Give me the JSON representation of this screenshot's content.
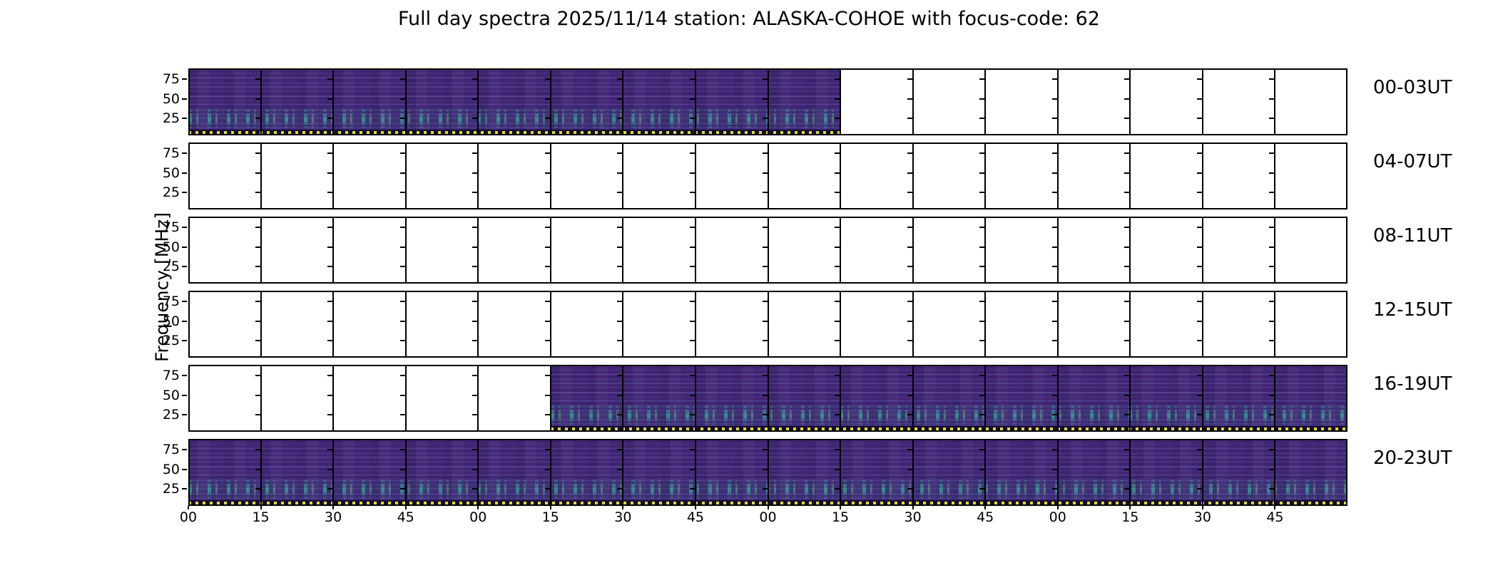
{
  "title": "Full day spectra 2025/11/14 station: ALASKA-COHOE with focus-code: 62",
  "y_axis": {
    "label": "Frequency [MHz]",
    "ticks": [
      "75",
      "50",
      "25"
    ]
  },
  "x_axis": {
    "tick_labels": [
      "00",
      "15",
      "30",
      "45",
      "00",
      "15",
      "30",
      "45",
      "00",
      "15",
      "30",
      "45",
      "00",
      "15",
      "30",
      "45"
    ],
    "tick_unit": "minutes",
    "segments_per_row": 16,
    "segment_duration_min": 15
  },
  "rows": [
    {
      "label": "00-03UT",
      "time_span": "00:00-04:00 UT",
      "filled_from_segment": 0,
      "filled_to_segment": 9,
      "data_coverage": "00:00-02:15"
    },
    {
      "label": "04-07UT",
      "time_span": "04:00-08:00 UT",
      "filled_from_segment": 0,
      "filled_to_segment": 0,
      "data_coverage": "none"
    },
    {
      "label": "08-11UT",
      "time_span": "08:00-12:00 UT",
      "filled_from_segment": 0,
      "filled_to_segment": 0,
      "data_coverage": "none"
    },
    {
      "label": "12-15UT",
      "time_span": "12:00-16:00 UT",
      "filled_from_segment": 0,
      "filled_to_segment": 0,
      "data_coverage": "none"
    },
    {
      "label": "16-19UT",
      "time_span": "16:00-20:00 UT",
      "filled_from_segment": 5,
      "filled_to_segment": 16,
      "data_coverage": "17:15-20:00"
    },
    {
      "label": "20-23UT",
      "time_span": "20:00-24:00 UT",
      "filled_from_segment": 0,
      "filled_to_segment": 16,
      "data_coverage": "20:00-24:00"
    }
  ],
  "colors": {
    "spectrogram_base": "#432a78",
    "spectrogram_band_light": "#4a3182",
    "spectrogram_teal_accent": "#34b296",
    "marker_dot_yellow": "#d9e325",
    "marker_dot_background": "#170a34",
    "axis_black": "#000000",
    "background_white": "#ffffff"
  },
  "chart_data": {
    "type": "heatmap",
    "subtype": "radio-spectrogram-daily-overview",
    "title": "Full day spectra 2025/11/14 station: ALASKA-COHOE with focus-code: 62",
    "station": "ALASKA-COHOE",
    "date": "2025/11/14",
    "focus_code": "62",
    "ylabel": "Frequency [MHz]",
    "y_ticks_mhz": [
      75,
      50,
      25
    ],
    "y_range_mhz_approx": [
      90,
      5
    ],
    "x_tick_labels_minutes": [
      "00",
      "15",
      "30",
      "45",
      "00",
      "15",
      "30",
      "45",
      "00",
      "15",
      "30",
      "45",
      "00",
      "15",
      "30",
      "45"
    ],
    "rows": [
      {
        "label": "00-03UT",
        "span": "00:00-04:00",
        "data_present": "00:00-02:15",
        "filled_segments": 9,
        "total_segments": 16
      },
      {
        "label": "04-07UT",
        "span": "04:00-08:00",
        "data_present": "none",
        "filled_segments": 0,
        "total_segments": 16
      },
      {
        "label": "08-11UT",
        "span": "08:00-12:00",
        "data_present": "none",
        "filled_segments": 0,
        "total_segments": 16
      },
      {
        "label": "12-15UT",
        "span": "12:00-16:00",
        "data_present": "none",
        "filled_segments": 0,
        "total_segments": 16
      },
      {
        "label": "16-19UT",
        "span": "16:00-20:00",
        "data_present": "17:15-20:00",
        "filled_segments": 11,
        "total_segments": 16
      },
      {
        "label": "20-23UT",
        "span": "20:00-24:00",
        "data_present": "20:00-24:00",
        "filled_segments": 16,
        "total_segments": 16
      }
    ],
    "legend": "none",
    "grid": "15-minute segment boundaries drawn as vertical black lines",
    "colormap": "viridis-like: dark purple background with teal interference bands near 15-30 MHz and a yellow dashed marker strip along the bottom of recorded segments"
  }
}
